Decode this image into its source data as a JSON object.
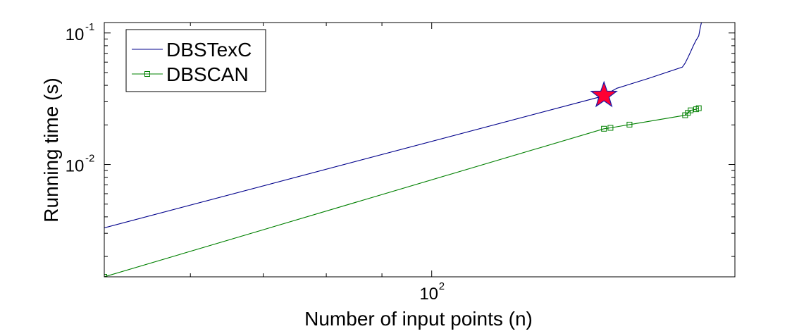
{
  "chart_data": {
    "type": "line",
    "title": "",
    "xlabel": "Number of input points (n)",
    "ylabel": "Running time (s)",
    "xscale": "log",
    "yscale": "log",
    "xlim": [
      50,
      190
    ],
    "ylim": [
      0.0014,
      0.12
    ],
    "xticks": [
      {
        "value": 100,
        "base": "10",
        "exp": "2"
      }
    ],
    "yticks": [
      {
        "value": 0.01,
        "base": "10",
        "exp": "-2"
      },
      {
        "value": 0.1,
        "base": "10",
        "exp": "-1"
      }
    ],
    "grid": false,
    "legend": {
      "position": "top-left"
    },
    "series": [
      {
        "name": "DBSTexC",
        "color": "#00008b",
        "marker": "none",
        "x": [
          50,
          143.5,
          148,
          158,
          170,
          171,
          172,
          173,
          174,
          175,
          176,
          176.5,
          177
        ],
        "y": [
          0.0033,
          0.033,
          0.038,
          0.045,
          0.055,
          0.059,
          0.065,
          0.072,
          0.08,
          0.088,
          0.095,
          0.108,
          0.12
        ]
      },
      {
        "name": "DBSCAN",
        "color": "#008000",
        "marker": "square",
        "x": [
          50,
          144,
          146,
          152,
          171,
          172,
          173,
          175,
          176
        ],
        "y": [
          0.0014,
          0.0187,
          0.019,
          0.0201,
          0.0237,
          0.0247,
          0.0258,
          0.0263,
          0.0268
        ]
      }
    ],
    "annotations": [
      {
        "type": "star",
        "x": 144,
        "y": 0.0335,
        "fill": "#ff0033",
        "stroke": "#1a1aa6"
      }
    ]
  }
}
